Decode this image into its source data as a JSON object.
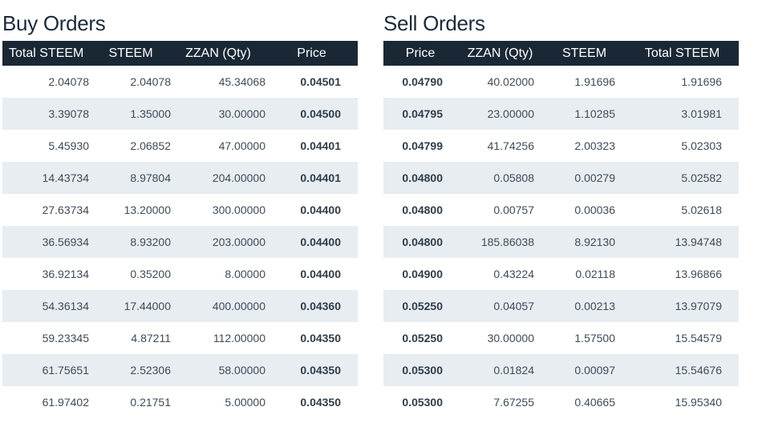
{
  "buy": {
    "title": "Buy Orders",
    "headers": [
      "Total STEEM",
      "STEEM",
      "ZZAN (Qty)",
      "Price"
    ],
    "rows": [
      [
        "2.04078",
        "2.04078",
        "45.34068",
        "0.04501"
      ],
      [
        "3.39078",
        "1.35000",
        "30.00000",
        "0.04500"
      ],
      [
        "5.45930",
        "2.06852",
        "47.00000",
        "0.04401"
      ],
      [
        "14.43734",
        "8.97804",
        "204.00000",
        "0.04401"
      ],
      [
        "27.63734",
        "13.20000",
        "300.00000",
        "0.04400"
      ],
      [
        "36.56934",
        "8.93200",
        "203.00000",
        "0.04400"
      ],
      [
        "36.92134",
        "0.35200",
        "8.00000",
        "0.04400"
      ],
      [
        "54.36134",
        "17.44000",
        "400.00000",
        "0.04360"
      ],
      [
        "59.23345",
        "4.87211",
        "112.00000",
        "0.04350"
      ],
      [
        "61.75651",
        "2.52306",
        "58.00000",
        "0.04350"
      ],
      [
        "61.97402",
        "0.21751",
        "5.00000",
        "0.04350"
      ]
    ]
  },
  "sell": {
    "title": "Sell Orders",
    "headers": [
      "Price",
      "ZZAN (Qty)",
      "STEEM",
      "Total STEEM"
    ],
    "rows": [
      [
        "0.04790",
        "40.02000",
        "1.91696",
        "1.91696"
      ],
      [
        "0.04795",
        "23.00000",
        "1.10285",
        "3.01981"
      ],
      [
        "0.04799",
        "41.74256",
        "2.00323",
        "5.02303"
      ],
      [
        "0.04800",
        "0.05808",
        "0.00279",
        "5.02582"
      ],
      [
        "0.04800",
        "0.00757",
        "0.00036",
        "5.02618"
      ],
      [
        "0.04800",
        "185.86038",
        "8.92130",
        "13.94748"
      ],
      [
        "0.04900",
        "0.43224",
        "0.02118",
        "13.96866"
      ],
      [
        "0.05250",
        "0.04057",
        "0.00213",
        "13.97079"
      ],
      [
        "0.05250",
        "30.00000",
        "1.57500",
        "15.54579"
      ],
      [
        "0.05300",
        "0.01824",
        "0.00097",
        "15.54676"
      ],
      [
        "0.05300",
        "7.67255",
        "0.40665",
        "15.95340"
      ]
    ]
  },
  "colors": {
    "header_bg": "#1a2836",
    "stripe_bg": "#e8edf1",
    "title_text": "#1b2b3a"
  }
}
